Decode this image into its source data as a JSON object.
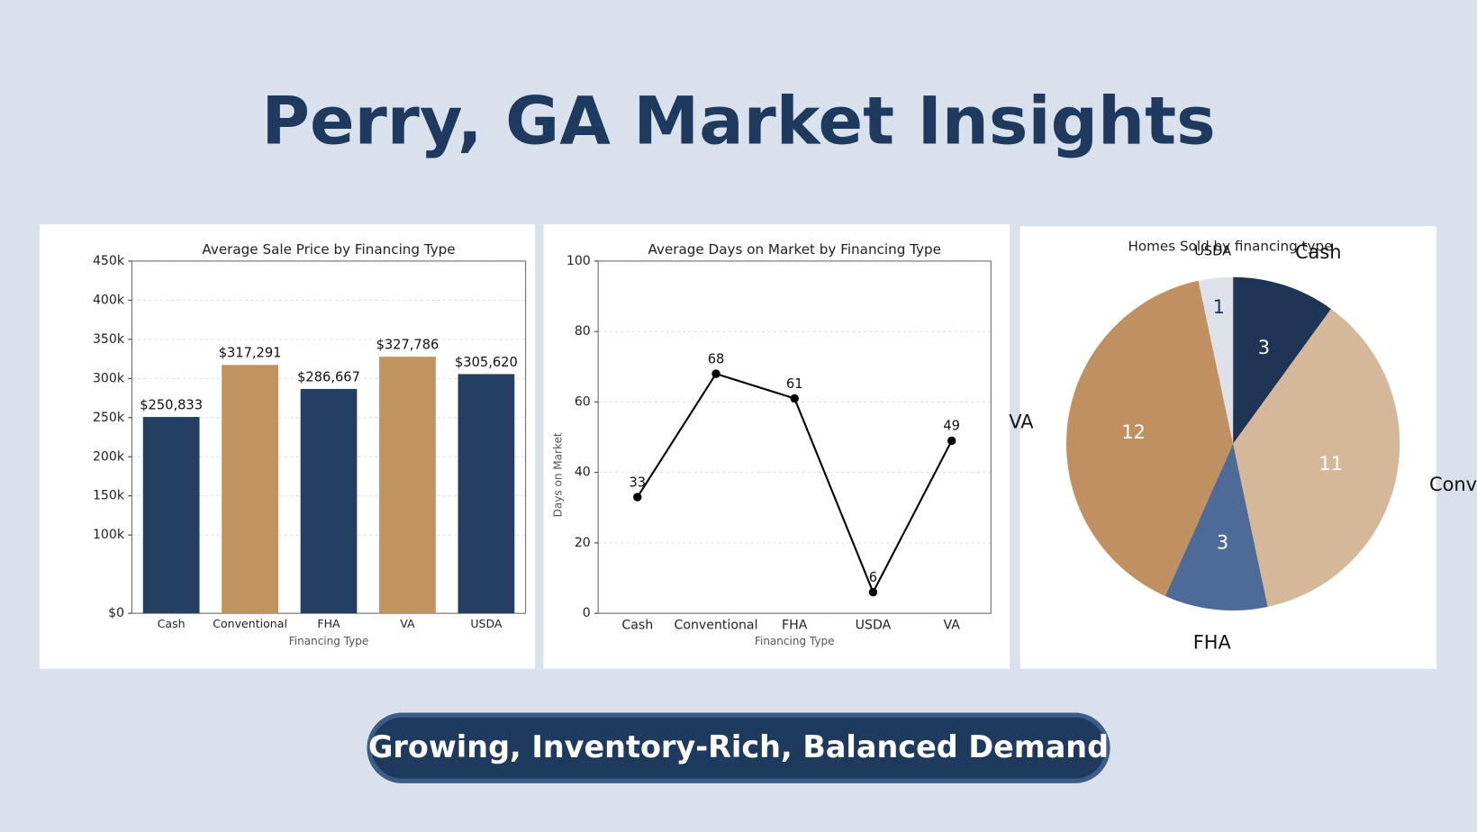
{
  "title": "Perry, GA Market Insights",
  "tagline": "Growing, Inventory-Rich, Balanced Demand",
  "chart_data": [
    {
      "type": "bar",
      "title": "Average Sale Price by Financing Type",
      "xlabel": "Financing Type",
      "categories": [
        "Cash",
        "Conventional",
        "FHA",
        "VA",
        "USDA"
      ],
      "values": [
        250833,
        317291,
        286667,
        327786,
        305620
      ],
      "value_labels": [
        "$250,833",
        "$317,291",
        "$286,667",
        "$327,786",
        "$305,620"
      ],
      "colors": [
        "#243f61",
        "#c1935f",
        "#243f61",
        "#c1935f",
        "#243f61"
      ],
      "ylim": [
        0,
        450000
      ],
      "yticks": [
        {
          "value": 0,
          "label": "$0"
        },
        {
          "value": 100000,
          "label": "100k"
        },
        {
          "value": 150000,
          "label": "150k"
        },
        {
          "value": 200000,
          "label": "200k"
        },
        {
          "value": 250000,
          "label": "250k"
        },
        {
          "value": 300000,
          "label": "300k"
        },
        {
          "value": 350000,
          "label": "350k"
        },
        {
          "value": 400000,
          "label": "400k"
        },
        {
          "value": 450000,
          "label": "450k"
        }
      ],
      "grid": true
    },
    {
      "type": "line",
      "title": "Average Days on Market by Financing Type",
      "xlabel": "Financing Type",
      "ylabel": "Days on Market",
      "categories": [
        "Cash",
        "Conventional",
        "FHA",
        "USDA",
        "VA"
      ],
      "values": [
        33,
        68,
        61,
        6,
        49
      ],
      "color": "#000000",
      "ylim": [
        0,
        100
      ],
      "yticks": [
        0,
        20,
        40,
        60,
        80,
        100
      ],
      "grid": true
    },
    {
      "type": "pie",
      "title": "Homes Sold by financing type",
      "categories": [
        "Cash",
        "Conventional",
        "FHA",
        "VA",
        "USDA"
      ],
      "values": [
        3,
        11,
        3,
        12,
        1
      ],
      "colors": [
        "#1f3556",
        "#d5b899",
        "#4e6a96",
        "#c09060",
        "#dde1e8"
      ]
    }
  ]
}
